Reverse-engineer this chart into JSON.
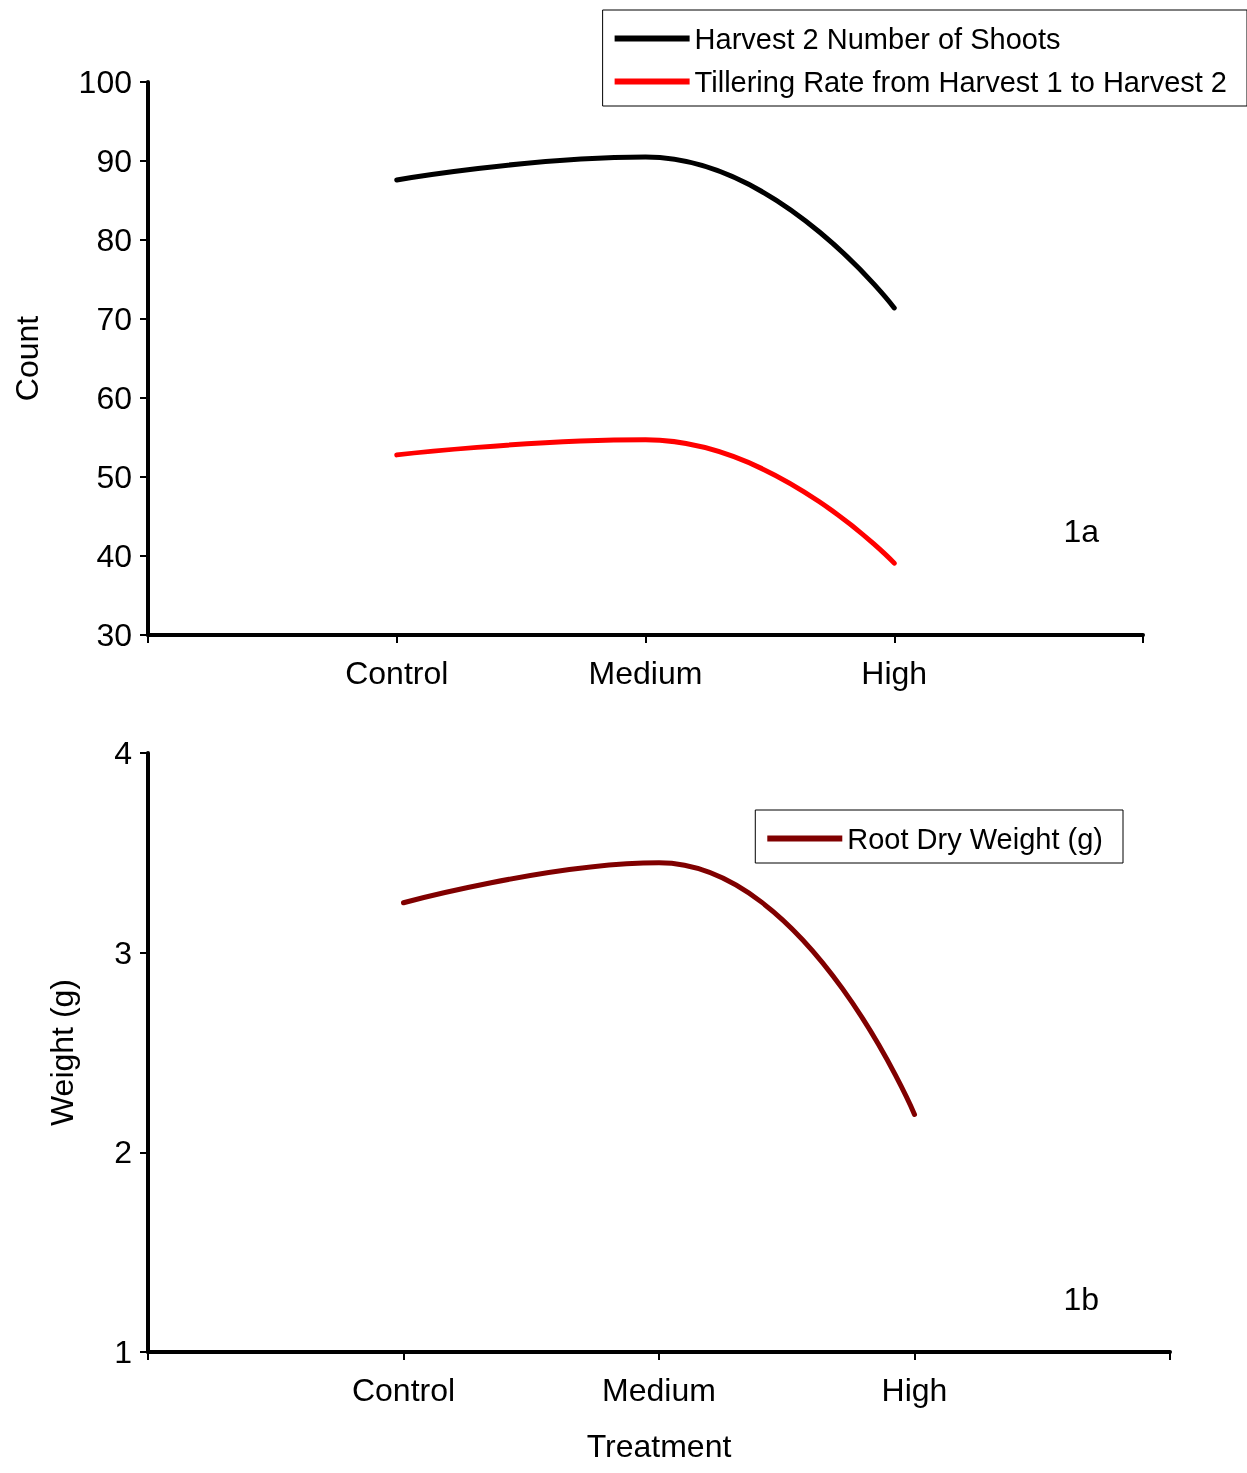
{
  "chart_data": [
    {
      "type": "line",
      "categories": [
        "Control",
        "Medium",
        "High"
      ],
      "ylabel": "Count",
      "ylim": [
        30,
        100
      ],
      "yticks": [
        30,
        40,
        50,
        60,
        70,
        80,
        90,
        100
      ],
      "grid": false,
      "legend": "top right",
      "marker": "none",
      "line_style": "solid",
      "annotations": [
        "1a"
      ],
      "series": [
        {
          "name": "Harvest 2 Number of Shoots",
          "color": "#000000",
          "values": [
            87.6,
            90.5,
            71.4
          ]
        },
        {
          "name": "Tillering Rate from Harvest 1 to Harvest 2",
          "color": "#ff0000",
          "values": [
            52.8,
            54.7,
            39.1
          ]
        }
      ]
    },
    {
      "type": "line",
      "categories": [
        "Control",
        "Medium",
        "High"
      ],
      "xlabel": "Treatment",
      "ylabel": "Weight (g)",
      "ylim": [
        1,
        4
      ],
      "yticks": [
        1,
        2,
        3,
        4
      ],
      "grid": false,
      "legend": "top right",
      "marker": "none",
      "line_style": "solid",
      "annotations": [
        "1b"
      ],
      "series": [
        {
          "name": "Root Dry Weight (g)",
          "color": "#800000",
          "values": [
            3.25,
            3.45,
            2.19
          ]
        }
      ]
    }
  ]
}
